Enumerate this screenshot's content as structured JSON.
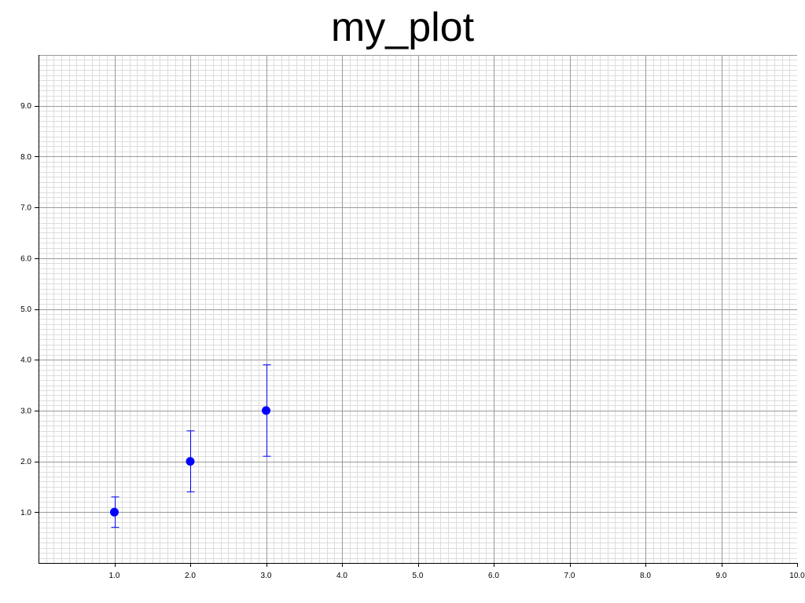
{
  "chart_data": {
    "type": "scatter",
    "title": "my_plot",
    "xlabel": "",
    "ylabel": "",
    "xlim": [
      0,
      10
    ],
    "ylim": [
      0,
      10
    ],
    "grid": true,
    "x_ticks": [
      1,
      2,
      3,
      4,
      5,
      6,
      7,
      8,
      9,
      10
    ],
    "x_tick_labels": [
      "1.0",
      "2.0",
      "3.0",
      "4.0",
      "5.0",
      "6.0",
      "7.0",
      "8.0",
      "9.0",
      "10.0"
    ],
    "y_ticks": [
      1,
      2,
      3,
      4,
      5,
      6,
      7,
      8,
      9
    ],
    "y_tick_labels": [
      "1.0",
      "2.0",
      "3.0",
      "4.0",
      "5.0",
      "6.0",
      "7.0",
      "8.0",
      "9.0"
    ],
    "series": [
      {
        "x": [
          1,
          2,
          3
        ],
        "y": [
          1,
          2,
          3
        ],
        "y_err_lower": [
          0.7,
          1.4,
          2.1
        ],
        "y_err_upper": [
          1.3,
          2.6,
          3.9
        ],
        "color": "#0000ff"
      }
    ],
    "colors": {
      "major_grid": "#9a9a9a",
      "minor_grid": "#dddddd",
      "axis": "#000000"
    }
  }
}
